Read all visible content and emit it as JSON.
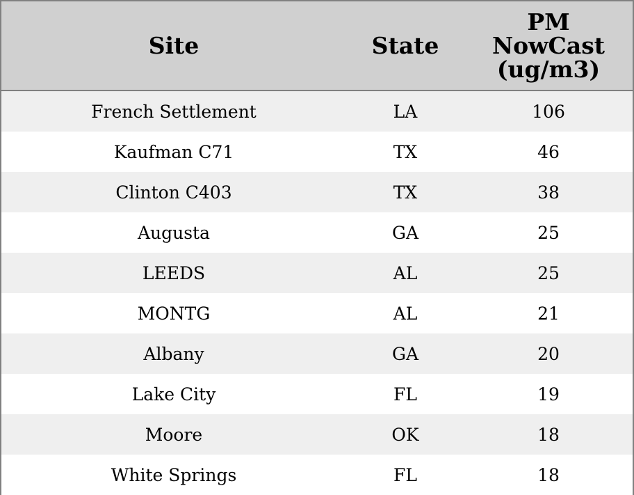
{
  "chart_data": {
    "type": "table",
    "columns": [
      "Site",
      "State",
      "PM NowCast (ug/m3)"
    ],
    "header_lines": {
      "site": [
        "Site"
      ],
      "state": [
        "State"
      ],
      "pm": [
        "PM",
        "NowCast",
        "(ug/m3)"
      ]
    },
    "rows": [
      {
        "site": "French Settlement",
        "state": "LA",
        "pm": 106
      },
      {
        "site": "Kaufman C71",
        "state": "TX",
        "pm": 46
      },
      {
        "site": "Clinton C403",
        "state": "TX",
        "pm": 38
      },
      {
        "site": "Augusta",
        "state": "GA",
        "pm": 25
      },
      {
        "site": "LEEDS",
        "state": "AL",
        "pm": 25
      },
      {
        "site": "MONTG",
        "state": "AL",
        "pm": 21
      },
      {
        "site": "Albany",
        "state": "GA",
        "pm": 20
      },
      {
        "site": "Lake City",
        "state": "FL",
        "pm": 19
      },
      {
        "site": "Moore",
        "state": "OK",
        "pm": 18
      },
      {
        "site": "White Springs",
        "state": "FL",
        "pm": 18
      }
    ],
    "colors": {
      "header_bg": "#d0d0d0",
      "row_shaded": "#efefef",
      "row_plain": "#ffffff",
      "border": "#808080"
    }
  }
}
